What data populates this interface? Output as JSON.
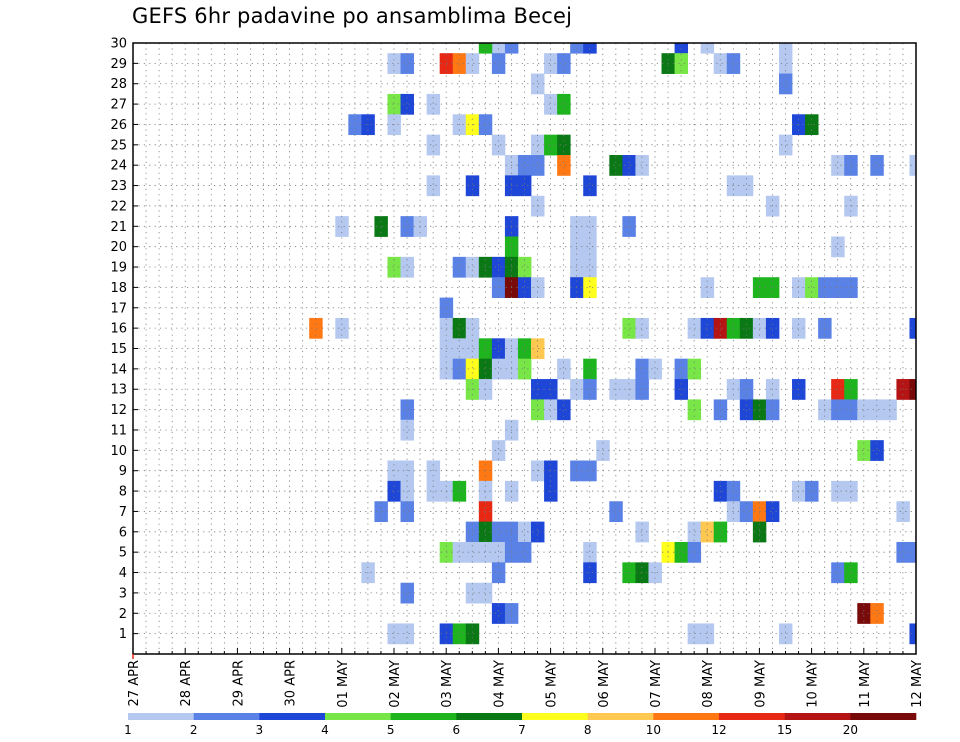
{
  "chart_data": {
    "type": "heatmap",
    "title": "GEFS 6hr padavine po ansamblima Becej",
    "xlabel": "",
    "ylabel": "",
    "x_tick_labels": [
      "27 APR",
      "28 APR",
      "29 APR",
      "30 APR",
      "01 MAY",
      "02 MAY",
      "03 MAY",
      "04 MAY",
      "05 MAY",
      "06 MAY",
      "07 MAY",
      "08 MAY",
      "09 MAY",
      "10 MAY",
      "11 MAY",
      "12 MAY"
    ],
    "y_tick_labels": [
      "1",
      "2",
      "3",
      "4",
      "5",
      "6",
      "7",
      "8",
      "9",
      "10",
      "11",
      "12",
      "13",
      "14",
      "15",
      "16",
      "17",
      "18",
      "19",
      "20",
      "21",
      "22",
      "23",
      "24",
      "25",
      "26",
      "27",
      "28",
      "29",
      "30"
    ],
    "xlim": [
      0,
      60
    ],
    "ylim": [
      0,
      30
    ],
    "grid": true,
    "colorbar": {
      "levels": [
        "1",
        "2",
        "3",
        "4",
        "5",
        "6",
        "7",
        "8",
        "10",
        "12",
        "15",
        "20"
      ],
      "colors": [
        "#b4c8f0",
        "#5a82e6",
        "#1e46d7",
        "#78e646",
        "#1eb41e",
        "#0a7814",
        "#ffff1e",
        "#ffc850",
        "#ff7814",
        "#e62814",
        "#b41414",
        "#780a0a"
      ]
    },
    "cells": [
      [
        28,
        30,
        1
      ],
      [
        29,
        30,
        2
      ],
      [
        34,
        30,
        2
      ],
      [
        35,
        30,
        3
      ],
      [
        42,
        30,
        3
      ],
      [
        44,
        30,
        1
      ],
      [
        50,
        30,
        1
      ],
      [
        27,
        30,
        5
      ],
      [
        20,
        29,
        1
      ],
      [
        21,
        29,
        2
      ],
      [
        24,
        29,
        10
      ],
      [
        25,
        29,
        9
      ],
      [
        26,
        29,
        1
      ],
      [
        28,
        29,
        2
      ],
      [
        32,
        29,
        1
      ],
      [
        33,
        29,
        2
      ],
      [
        41,
        29,
        6
      ],
      [
        42,
        29,
        4
      ],
      [
        45,
        29,
        1
      ],
      [
        46,
        29,
        2
      ],
      [
        50,
        29,
        1
      ],
      [
        31,
        28,
        1
      ],
      [
        50,
        28,
        2
      ],
      [
        20,
        27,
        4
      ],
      [
        21,
        27,
        3
      ],
      [
        23,
        27,
        1
      ],
      [
        32,
        27,
        1
      ],
      [
        33,
        27,
        5
      ],
      [
        17,
        26,
        2
      ],
      [
        18,
        26,
        3
      ],
      [
        20,
        26,
        1
      ],
      [
        25,
        26,
        1
      ],
      [
        26,
        26,
        7
      ],
      [
        27,
        26,
        2
      ],
      [
        51,
        26,
        3
      ],
      [
        52,
        26,
        6
      ],
      [
        23,
        25,
        1
      ],
      [
        28,
        25,
        1
      ],
      [
        31,
        25,
        1
      ],
      [
        32,
        25,
        5
      ],
      [
        33,
        25,
        6
      ],
      [
        50,
        25,
        1
      ],
      [
        29,
        24,
        1
      ],
      [
        30,
        24,
        2
      ],
      [
        31,
        24,
        2
      ],
      [
        33,
        24,
        9
      ],
      [
        37,
        24,
        6
      ],
      [
        38,
        24,
        3
      ],
      [
        39,
        24,
        1
      ],
      [
        54,
        24,
        1
      ],
      [
        55,
        24,
        2
      ],
      [
        57,
        24,
        2
      ],
      [
        60,
        24,
        1
      ],
      [
        23,
        23,
        1
      ],
      [
        26,
        23,
        3
      ],
      [
        29,
        23,
        3
      ],
      [
        30,
        23,
        3
      ],
      [
        35,
        23,
        3
      ],
      [
        46,
        23,
        1
      ],
      [
        47,
        23,
        1
      ],
      [
        31,
        22,
        1
      ],
      [
        49,
        22,
        1
      ],
      [
        55,
        22,
        1
      ],
      [
        16,
        21,
        1
      ],
      [
        19,
        21,
        6
      ],
      [
        21,
        21,
        2
      ],
      [
        22,
        21,
        1
      ],
      [
        29,
        21,
        3
      ],
      [
        34,
        21,
        1
      ],
      [
        35,
        21,
        1
      ],
      [
        38,
        21,
        2
      ],
      [
        29,
        20,
        5
      ],
      [
        34,
        20,
        1
      ],
      [
        35,
        20,
        1
      ],
      [
        54,
        20,
        1
      ],
      [
        20,
        19,
        4
      ],
      [
        21,
        19,
        1
      ],
      [
        25,
        19,
        2
      ],
      [
        26,
        19,
        1
      ],
      [
        27,
        19,
        6
      ],
      [
        28,
        19,
        3
      ],
      [
        29,
        19,
        6
      ],
      [
        30,
        19,
        4
      ],
      [
        34,
        19,
        1
      ],
      [
        35,
        19,
        1
      ],
      [
        28,
        18,
        2
      ],
      [
        29,
        18,
        12
      ],
      [
        30,
        18,
        3
      ],
      [
        31,
        18,
        1
      ],
      [
        34,
        18,
        3
      ],
      [
        35,
        18,
        7
      ],
      [
        44,
        18,
        1
      ],
      [
        48,
        18,
        5
      ],
      [
        49,
        18,
        5
      ],
      [
        51,
        18,
        1
      ],
      [
        52,
        18,
        4
      ],
      [
        53,
        18,
        2
      ],
      [
        54,
        18,
        2
      ],
      [
        55,
        18,
        2
      ],
      [
        24,
        17,
        2
      ],
      [
        14,
        16,
        9
      ],
      [
        16,
        16,
        1
      ],
      [
        24,
        16,
        1
      ],
      [
        25,
        16,
        6
      ],
      [
        26,
        16,
        1
      ],
      [
        38,
        16,
        4
      ],
      [
        39,
        16,
        1
      ],
      [
        43,
        16,
        1
      ],
      [
        44,
        16,
        3
      ],
      [
        45,
        16,
        11
      ],
      [
        46,
        16,
        5
      ],
      [
        47,
        16,
        6
      ],
      [
        48,
        16,
        1
      ],
      [
        49,
        16,
        3
      ],
      [
        51,
        16,
        1
      ],
      [
        53,
        16,
        2
      ],
      [
        60,
        16,
        3
      ],
      [
        24,
        15,
        1
      ],
      [
        25,
        15,
        1
      ],
      [
        26,
        15,
        1
      ],
      [
        27,
        15,
        5
      ],
      [
        28,
        15,
        3
      ],
      [
        29,
        15,
        1
      ],
      [
        30,
        15,
        5
      ],
      [
        31,
        15,
        8
      ],
      [
        24,
        14,
        1
      ],
      [
        25,
        14,
        2
      ],
      [
        26,
        14,
        7
      ],
      [
        27,
        14,
        6
      ],
      [
        28,
        14,
        1
      ],
      [
        29,
        14,
        1
      ],
      [
        30,
        14,
        4
      ],
      [
        33,
        14,
        1
      ],
      [
        35,
        14,
        5
      ],
      [
        39,
        14,
        2
      ],
      [
        40,
        14,
        1
      ],
      [
        42,
        14,
        2
      ],
      [
        43,
        14,
        4
      ],
      [
        26,
        13,
        4
      ],
      [
        27,
        13,
        1
      ],
      [
        31,
        13,
        3
      ],
      [
        32,
        13,
        3
      ],
      [
        34,
        13,
        1
      ],
      [
        35,
        13,
        2
      ],
      [
        37,
        13,
        1
      ],
      [
        38,
        13,
        1
      ],
      [
        39,
        13,
        2
      ],
      [
        42,
        13,
        3
      ],
      [
        46,
        13,
        1
      ],
      [
        47,
        13,
        2
      ],
      [
        49,
        13,
        1
      ],
      [
        51,
        13,
        3
      ],
      [
        54,
        13,
        10
      ],
      [
        55,
        13,
        5
      ],
      [
        59,
        13,
        11
      ],
      [
        60,
        13,
        12
      ],
      [
        21,
        12,
        2
      ],
      [
        31,
        12,
        4
      ],
      [
        32,
        12,
        1
      ],
      [
        33,
        12,
        3
      ],
      [
        43,
        12,
        4
      ],
      [
        45,
        12,
        2
      ],
      [
        47,
        12,
        3
      ],
      [
        48,
        12,
        6
      ],
      [
        49,
        12,
        2
      ],
      [
        53,
        12,
        1
      ],
      [
        54,
        12,
        2
      ],
      [
        55,
        12,
        2
      ],
      [
        56,
        12,
        1
      ],
      [
        57,
        12,
        1
      ],
      [
        58,
        12,
        1
      ],
      [
        21,
        11,
        1
      ],
      [
        29,
        11,
        1
      ],
      [
        28,
        10,
        1
      ],
      [
        36,
        10,
        1
      ],
      [
        56,
        10,
        4
      ],
      [
        57,
        10,
        3
      ],
      [
        20,
        9,
        1
      ],
      [
        21,
        9,
        1
      ],
      [
        23,
        9,
        1
      ],
      [
        27,
        9,
        9
      ],
      [
        31,
        9,
        1
      ],
      [
        32,
        9,
        3
      ],
      [
        34,
        9,
        2
      ],
      [
        35,
        9,
        2
      ],
      [
        20,
        8,
        3
      ],
      [
        21,
        8,
        1
      ],
      [
        23,
        8,
        1
      ],
      [
        24,
        8,
        1
      ],
      [
        25,
        8,
        5
      ],
      [
        27,
        8,
        1
      ],
      [
        29,
        8,
        1
      ],
      [
        32,
        8,
        3
      ],
      [
        45,
        8,
        3
      ],
      [
        46,
        8,
        2
      ],
      [
        51,
        8,
        1
      ],
      [
        52,
        8,
        2
      ],
      [
        54,
        8,
        1
      ],
      [
        55,
        8,
        1
      ],
      [
        19,
        7,
        2
      ],
      [
        21,
        7,
        2
      ],
      [
        27,
        7,
        10
      ],
      [
        37,
        7,
        2
      ],
      [
        46,
        7,
        1
      ],
      [
        47,
        7,
        2
      ],
      [
        48,
        7,
        9
      ],
      [
        49,
        7,
        3
      ],
      [
        59,
        7,
        1
      ],
      [
        26,
        6,
        2
      ],
      [
        27,
        6,
        6
      ],
      [
        28,
        6,
        2
      ],
      [
        29,
        6,
        2
      ],
      [
        30,
        6,
        1
      ],
      [
        31,
        6,
        3
      ],
      [
        39,
        6,
        1
      ],
      [
        43,
        6,
        1
      ],
      [
        44,
        6,
        8
      ],
      [
        45,
        6,
        5
      ],
      [
        48,
        6,
        6
      ],
      [
        24,
        5,
        4
      ],
      [
        25,
        5,
        1
      ],
      [
        26,
        5,
        1
      ],
      [
        27,
        5,
        1
      ],
      [
        28,
        5,
        1
      ],
      [
        29,
        5,
        2
      ],
      [
        30,
        5,
        2
      ],
      [
        35,
        5,
        1
      ],
      [
        41,
        5,
        7
      ],
      [
        42,
        5,
        5
      ],
      [
        43,
        5,
        2
      ],
      [
        59,
        5,
        2
      ],
      [
        60,
        5,
        2
      ],
      [
        18,
        4,
        1
      ],
      [
        28,
        4,
        2
      ],
      [
        35,
        4,
        3
      ],
      [
        38,
        4,
        5
      ],
      [
        39,
        4,
        6
      ],
      [
        40,
        4,
        1
      ],
      [
        54,
        4,
        2
      ],
      [
        55,
        4,
        5
      ],
      [
        21,
        3,
        2
      ],
      [
        26,
        3,
        1
      ],
      [
        27,
        3,
        1
      ],
      [
        28,
        2,
        3
      ],
      [
        29,
        2,
        2
      ],
      [
        56,
        2,
        12
      ],
      [
        57,
        2,
        9
      ],
      [
        20,
        1,
        1
      ],
      [
        21,
        1,
        1
      ],
      [
        24,
        1,
        3
      ],
      [
        25,
        1,
        5
      ],
      [
        26,
        1,
        6
      ],
      [
        43,
        1,
        1
      ],
      [
        44,
        1,
        1
      ],
      [
        50,
        1,
        1
      ],
      [
        60,
        1,
        3
      ]
    ]
  }
}
